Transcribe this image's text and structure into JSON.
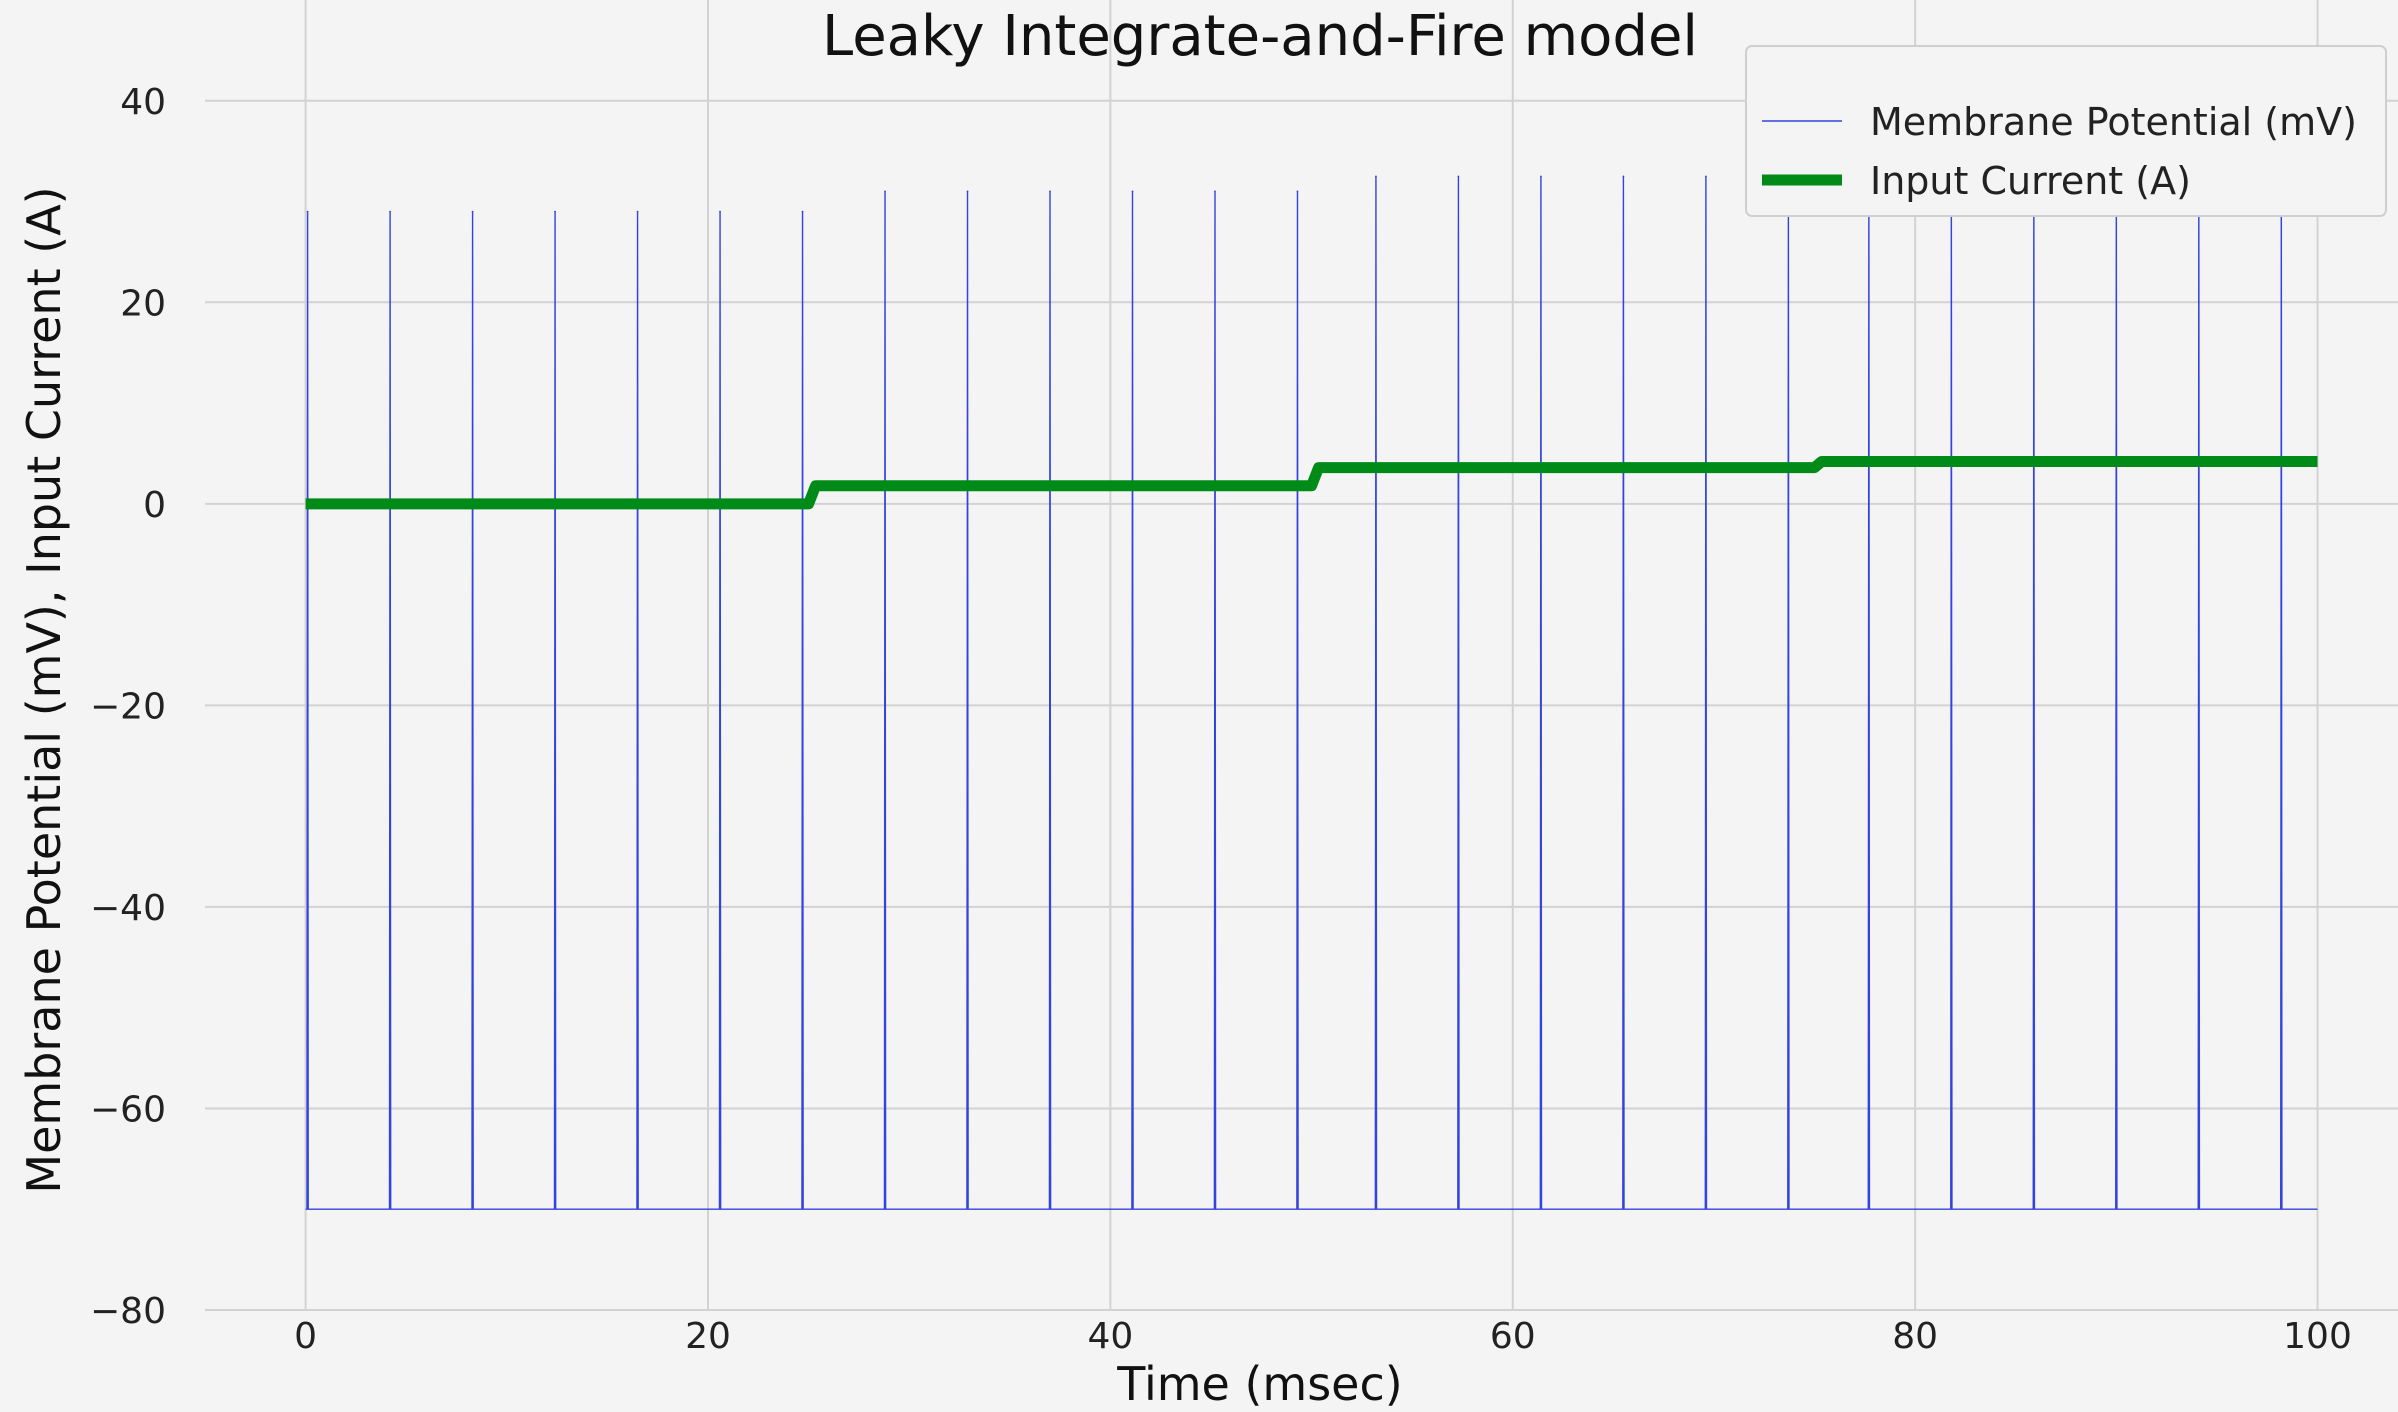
{
  "chart_data": {
    "type": "line",
    "title": "Leaky Integrate-and-Fire model",
    "xlabel": "Time (msec)",
    "ylabel": "Membrane Potential (mV), Input Current (A)",
    "xlim": [
      -5,
      104
    ],
    "ylim": [
      -80,
      50
    ],
    "xticks": [
      0,
      20,
      40,
      60,
      80,
      100
    ],
    "yticks": [
      -80,
      -60,
      -40,
      -20,
      0,
      20,
      40
    ],
    "grid": true,
    "legend_position": "top-right",
    "series": [
      {
        "name": "Membrane Potential (mV)",
        "color": "#3344dd",
        "resting_value": -70,
        "x_end": 100,
        "spike_times": [
          0.1,
          4.2,
          8.3,
          12.4,
          16.5,
          20.6,
          24.7,
          28.8,
          32.9,
          37.0,
          41.1,
          45.2,
          49.3,
          53.2,
          57.3,
          61.4,
          65.5,
          69.6,
          73.7,
          77.7,
          81.8,
          85.9,
          90.0,
          94.1,
          98.2
        ],
        "spike_peaks": [
          29,
          29,
          29,
          29,
          29,
          29,
          29,
          31,
          31,
          31,
          31,
          31,
          31,
          32.5,
          32.5,
          32.5,
          32.5,
          32.5,
          32.5,
          33.2,
          33.2,
          33.2,
          33.2,
          33.2,
          33.2
        ]
      },
      {
        "name": "Input Current (A)",
        "color": "#008b18",
        "x": [
          0,
          25,
          25,
          50,
          50,
          75,
          75,
          100
        ],
        "y": [
          0,
          0,
          1.8,
          1.8,
          3.6,
          3.6,
          4.2,
          4.2
        ]
      }
    ]
  }
}
